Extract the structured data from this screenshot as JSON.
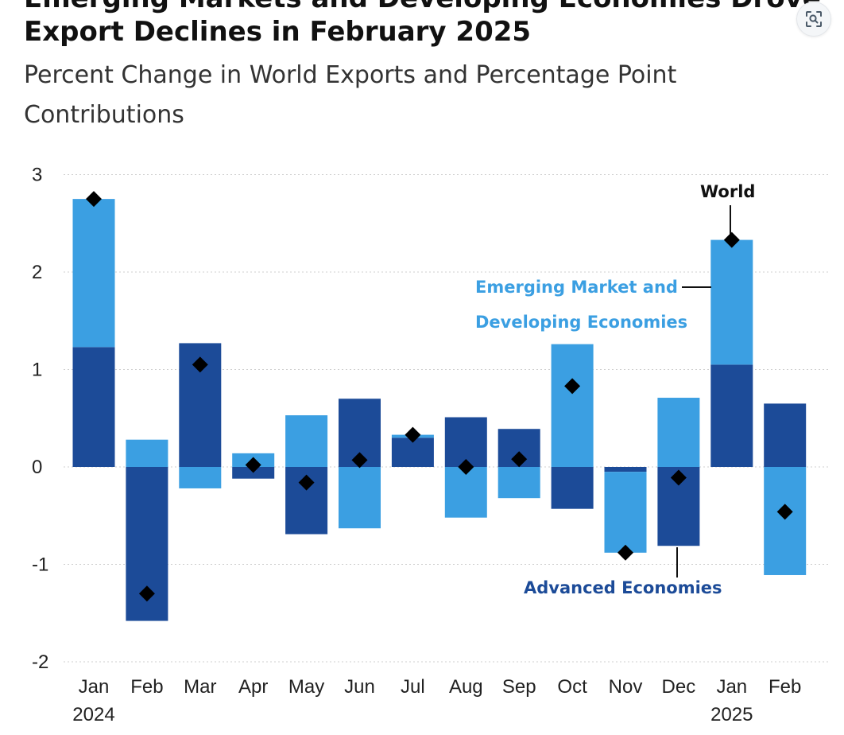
{
  "header": {
    "title_top_partial": "Emerging Markets and Developing Economies Drove",
    "title": "Export Declines in February 2025",
    "subtitle": "Percent Change in World Exports and Percentage Point Contributions"
  },
  "toolbar": {
    "lens_icon": "visual-search-icon"
  },
  "colors": {
    "advanced": "#1c4b98",
    "emerging": "#3b9fe2",
    "world_marker": "#000000",
    "gridline": "#cfcfcf"
  },
  "chart_data": {
    "type": "bar",
    "stacked": true,
    "title": "Export Declines in February 2025",
    "subtitle": "Percent Change in World Exports and Percentage Point Contributions",
    "categories": [
      "Jan",
      "Feb",
      "Mar",
      "Apr",
      "May",
      "Jun",
      "Jul",
      "Aug",
      "Sep",
      "Oct",
      "Nov",
      "Dec",
      "Jan",
      "Feb"
    ],
    "year_labels": [
      {
        "category_index": 0,
        "label": "2024"
      },
      {
        "category_index": 12,
        "label": "2025"
      }
    ],
    "ylim": [
      -2,
      3
    ],
    "yticks": [
      3,
      2,
      1,
      0,
      -1,
      -2
    ],
    "ytick_labels": [
      "3",
      "2",
      "1",
      "0",
      "-1",
      "-2"
    ],
    "grid": true,
    "series": [
      {
        "name": "Advanced Economies",
        "kind": "bar",
        "values": [
          1.23,
          -1.58,
          1.27,
          -0.12,
          -0.69,
          0.7,
          0.3,
          0.51,
          0.39,
          -0.43,
          -0.05,
          -0.81,
          1.05,
          0.65
        ]
      },
      {
        "name": "Emerging Market and Developing Economies",
        "kind": "bar",
        "values": [
          1.52,
          0.28,
          -0.22,
          0.14,
          0.53,
          -0.63,
          0.03,
          -0.52,
          -0.32,
          1.26,
          -0.83,
          0.71,
          1.28,
          -1.11
        ]
      },
      {
        "name": "World",
        "kind": "marker",
        "values": [
          2.75,
          -1.3,
          1.05,
          0.02,
          -0.16,
          0.07,
          0.33,
          0.0,
          0.08,
          0.83,
          -0.88,
          -0.11,
          2.33,
          -0.46
        ]
      }
    ],
    "annotations": {
      "world": "World",
      "emerging_line1": "Emerging Market and",
      "emerging_line2": "Developing Economies",
      "advanced": "Advanced Economies"
    }
  }
}
